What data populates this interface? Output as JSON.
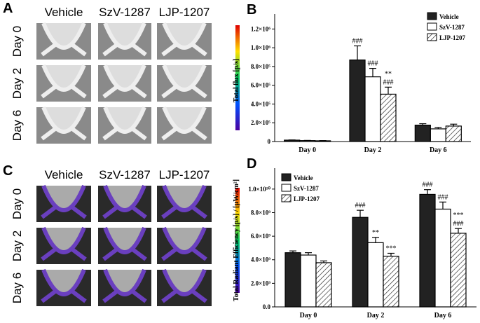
{
  "panels": [
    {
      "letter": "A",
      "columns": [
        "Vehicle",
        "SzV-1287",
        "LJP-1207"
      ],
      "rows": [
        "Day 0",
        "Day 2",
        "Day 6"
      ]
    },
    {
      "letter": "C",
      "columns": [
        "Vehicle",
        "SzV-1287",
        "LJP-1207"
      ],
      "rows": [
        "Day 0",
        "Day 2",
        "Day 6"
      ]
    }
  ],
  "chart_data": [
    {
      "type": "bar",
      "panel": "B",
      "y_label": "Total flux [p/s]",
      "categories": [
        "Day 0",
        "Day 2",
        "Day 6"
      ],
      "ylim": [
        0,
        1300000
      ],
      "yticks": [
        0,
        {
          "value": 200000,
          "label": "2.0×10⁵"
        },
        {
          "value": 400000,
          "label": "4.0×10⁵"
        },
        {
          "value": 600000,
          "label": "6.0×10⁵"
        },
        {
          "value": 800000,
          "label": "8.0×10⁵"
        },
        {
          "value": 1000000,
          "label": "1.0×10⁶"
        },
        {
          "value": 1200000,
          "label": "1.2×10⁶"
        }
      ],
      "legend": "top-right",
      "series": [
        {
          "name": "Vehicle",
          "color": "#222222",
          "hatch": false,
          "values": [
            15000,
            870000,
            175000
          ],
          "errors": [
            2000,
            150000,
            15000
          ],
          "annotations": [
            [],
            [
              "###"
            ],
            []
          ]
        },
        {
          "name": "SzV-1287",
          "color": "#ffffff",
          "hatch": false,
          "values": [
            10000,
            690000,
            135000
          ],
          "errors": [
            2000,
            90000,
            15000
          ],
          "annotations": [
            [],
            [
              "###"
            ],
            []
          ]
        },
        {
          "name": "LJP-1207",
          "color": "#ffffff",
          "hatch": true,
          "values": [
            8000,
            505000,
            165000
          ],
          "errors": [
            2000,
            75000,
            20000
          ],
          "annotations": [
            [],
            [
              "**",
              "###"
            ],
            []
          ]
        }
      ]
    },
    {
      "type": "bar",
      "panel": "D",
      "y_label": "Total Radiant Efficiency [p/s] / [µW/cm²]",
      "categories": [
        "Day 0",
        "Day 2",
        "Day 6"
      ],
      "ylim": [
        0,
        11300000000
      ],
      "yticks": [
        {
          "value": 0,
          "label": "0.0"
        },
        {
          "value": 2000000000,
          "label": "2.0×10⁹"
        },
        {
          "value": 4000000000,
          "label": "4.0×10⁹"
        },
        {
          "value": 6000000000,
          "label": "6.0×10⁹"
        },
        {
          "value": 8000000000,
          "label": "8.0×10⁹"
        },
        {
          "value": 10000000000,
          "label": "1.0×10¹⁰"
        }
      ],
      "legend": "top-left",
      "series": [
        {
          "name": "Vehicle",
          "color": "#222222",
          "hatch": false,
          "values": [
            4600000000,
            7600000000,
            9550000000
          ],
          "errors": [
            150000000,
            600000000,
            400000000
          ],
          "annotations": [
            [],
            [
              "###"
            ],
            [
              "###"
            ]
          ]
        },
        {
          "name": "SzV-1287",
          "color": "#ffffff",
          "hatch": false,
          "values": [
            4400000000,
            5450000000,
            8300000000
          ],
          "errors": [
            200000000,
            450000000,
            600000000
          ],
          "annotations": [
            [],
            [
              "**"
            ],
            [
              "###"
            ]
          ]
        },
        {
          "name": "LJP-1207",
          "color": "#ffffff",
          "hatch": true,
          "values": [
            3750000000,
            4300000000,
            6250000000
          ],
          "errors": [
            150000000,
            250000000,
            400000000
          ],
          "annotations": [
            [],
            [
              "***"
            ],
            [
              "***",
              "###"
            ]
          ]
        }
      ]
    }
  ]
}
